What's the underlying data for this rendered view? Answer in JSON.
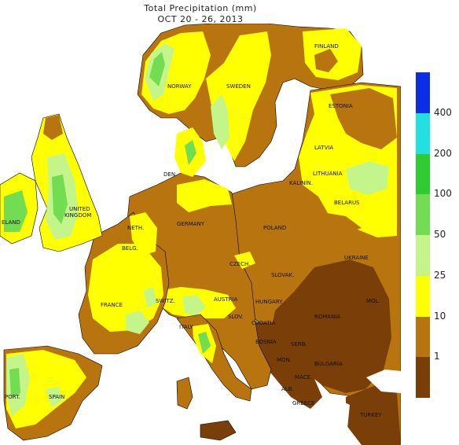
{
  "title": "Total Precipitation (mm)",
  "subtitle": "OCT 20 - 26, 2013",
  "legend": {
    "bins": [
      {
        "color": "#7a3e08",
        "label": ""
      },
      {
        "color": "#b8750f",
        "label": "1"
      },
      {
        "color": "#ffff00",
        "label": "10"
      },
      {
        "color": "#c4f58a",
        "label": "25"
      },
      {
        "color": "#72dc52",
        "label": "50"
      },
      {
        "color": "#2ecc30",
        "label": "100"
      },
      {
        "color": "#22e0e0",
        "label": "200"
      },
      {
        "color": "#0a2ee6",
        "label": "400"
      }
    ]
  },
  "countries": {
    "finland": "FINLAND",
    "sweden": "SWEDEN",
    "norway": "NORWAY",
    "estonia": "ESTONIA",
    "latvia": "LATVIA",
    "lithuania": "LITHUANIA",
    "kalinin": "KALININ.",
    "belarus": "BELARUS",
    "den": "DEN.",
    "uk": "UNITED",
    "uk2": "KINGDOM",
    "ireland": "ELAND",
    "neth": "NETH.",
    "germany": "GERMANY",
    "poland": "POLAND",
    "belg": "BELG.",
    "czech": "CZECH.",
    "slovak": "SLOVAK.",
    "ukraine": "UKRAINE",
    "france": "FRANCE",
    "switz": "SWITZ.",
    "austria": "AUSTRIA",
    "hungary": "HUNGARY",
    "mol": "MOL.",
    "slov": "SLOV.",
    "romania": "ROMANIA",
    "italy": "ITALY",
    "croatia": "CROATIA",
    "bosnia": "BOSNIA",
    "serb": "SERB.",
    "mon": "MON.",
    "bulgaria": "BULGARIA",
    "mace": "MACE.",
    "alb": "ALB.",
    "greece": "GREECE",
    "turkey": "TURKEY",
    "port": "PORT.",
    "spain": "SPAIN"
  }
}
